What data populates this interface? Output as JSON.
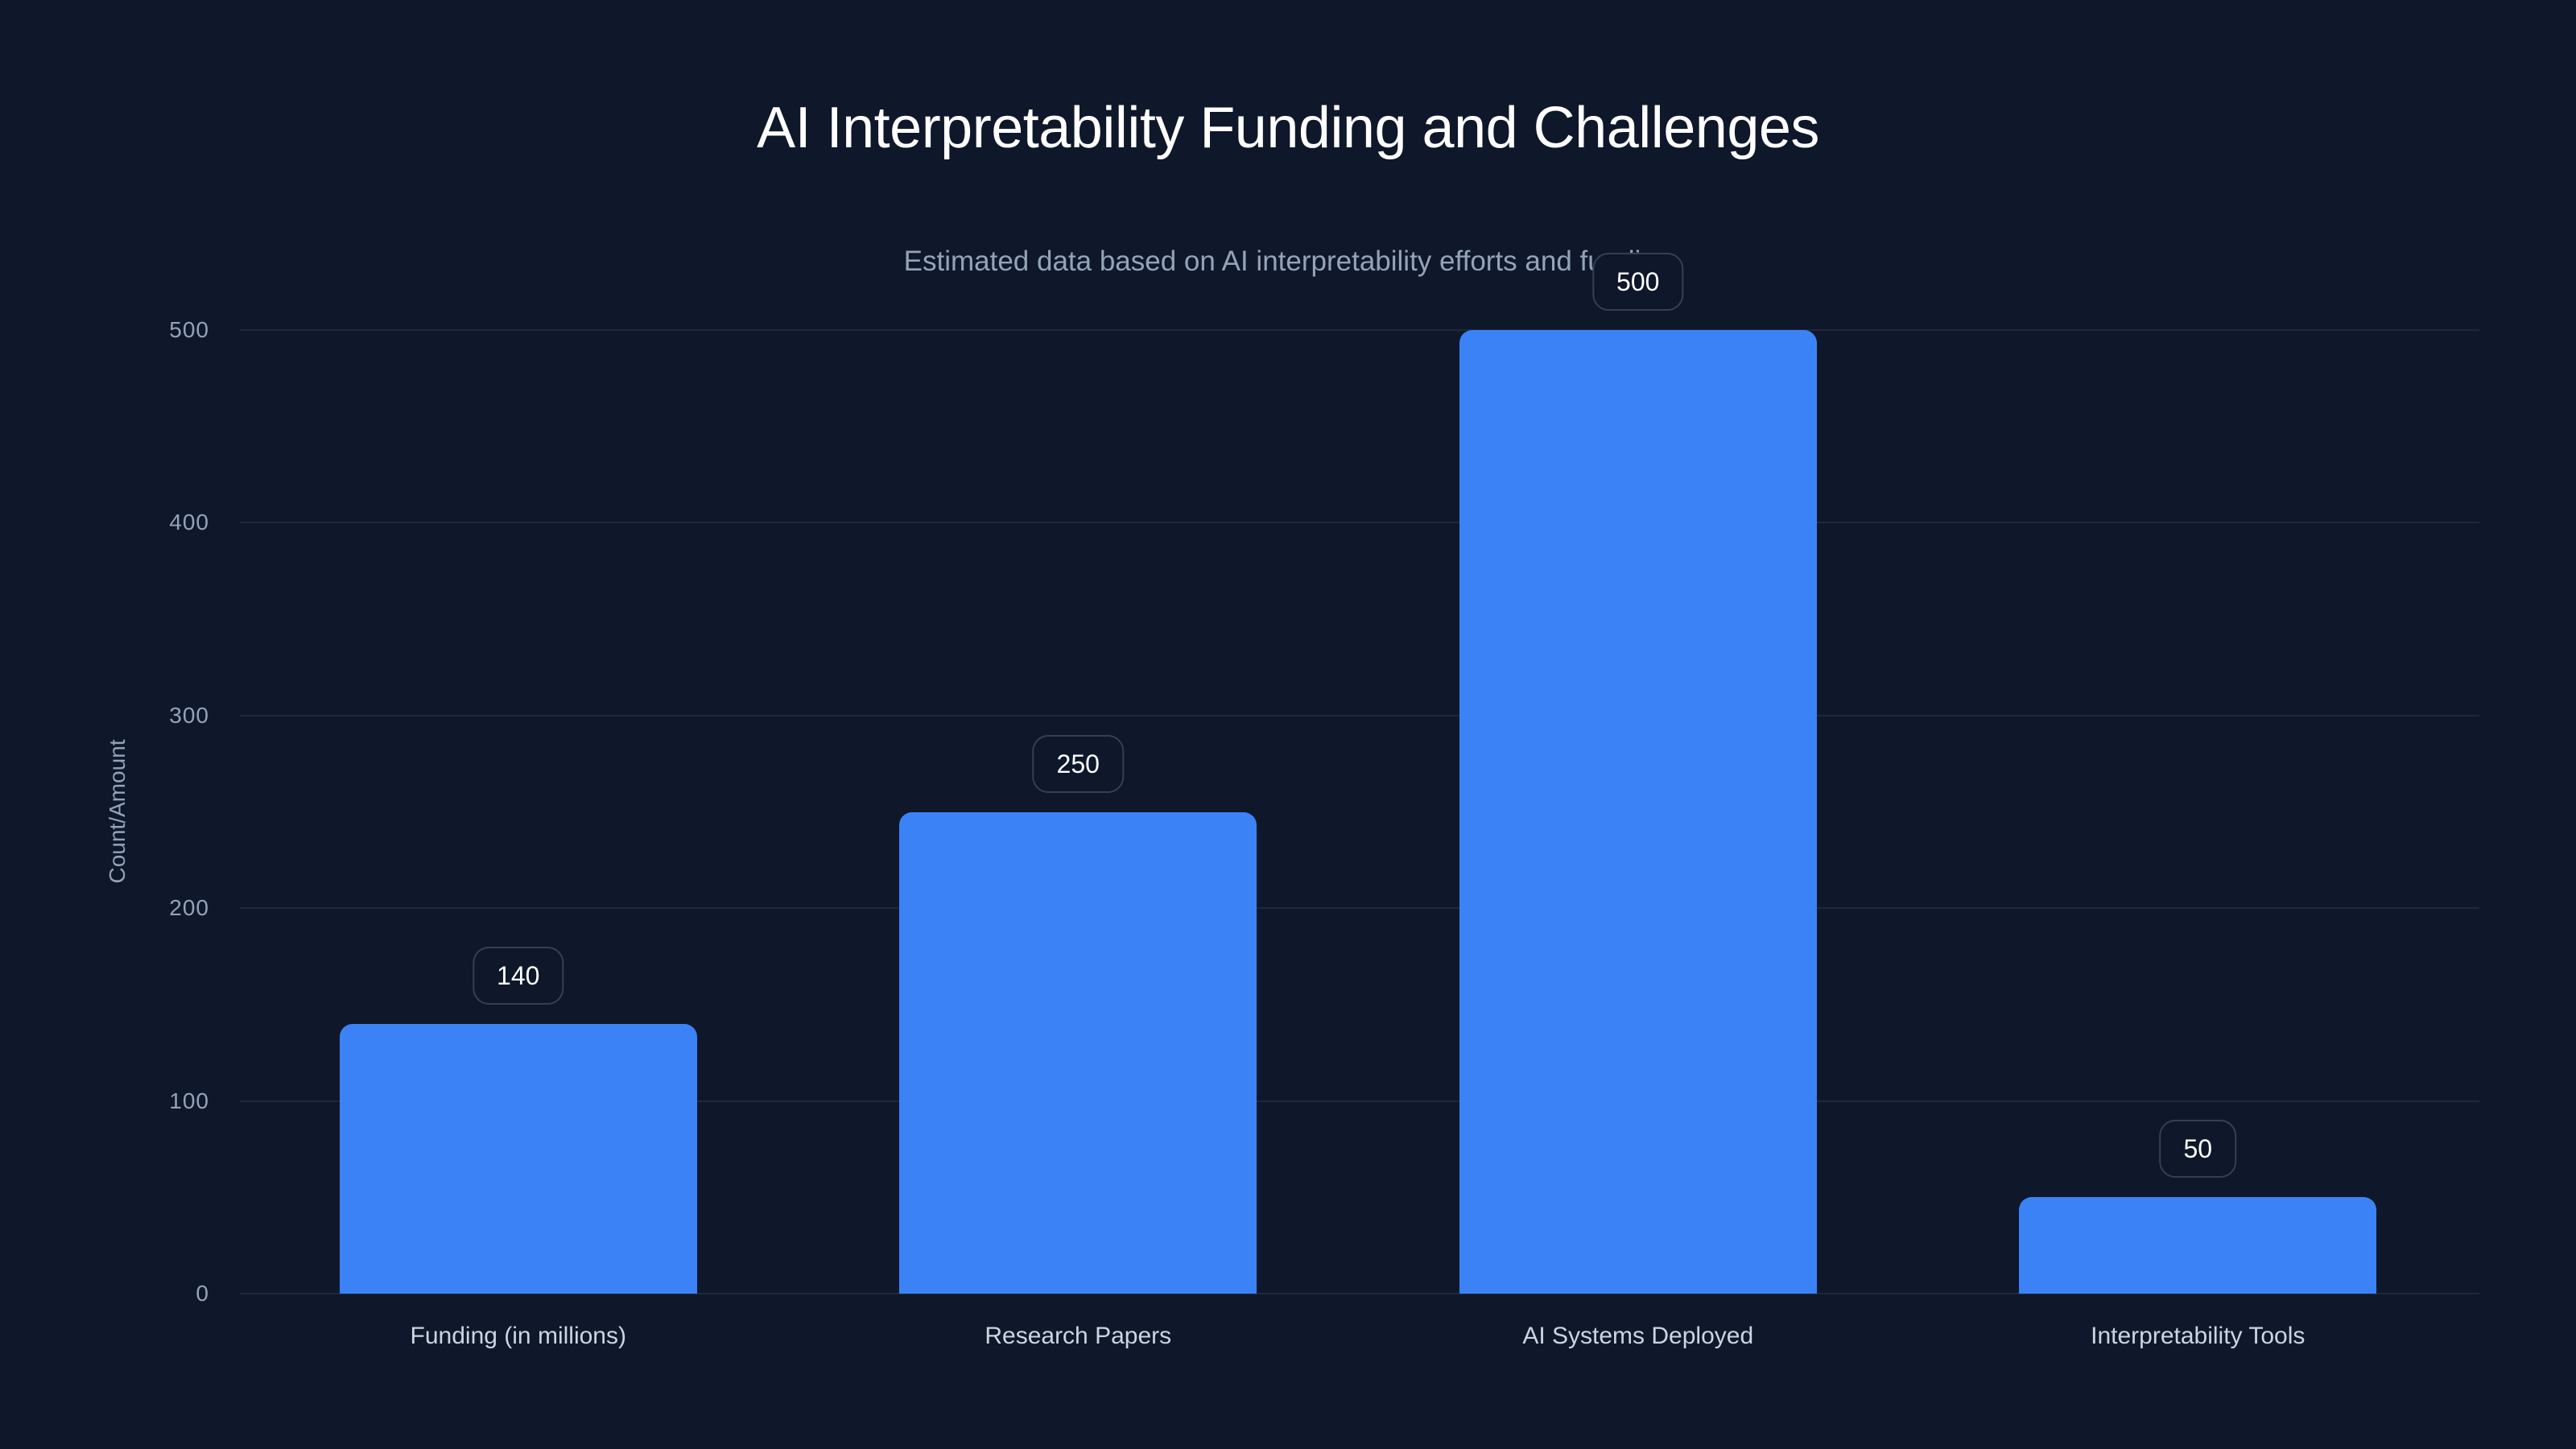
{
  "chart_data": {
    "type": "bar",
    "title": "AI Interpretability Funding and Challenges",
    "subtitle": "Estimated data based on AI interpretability efforts and funding",
    "xlabel": "",
    "ylabel": "Count/Amount",
    "categories": [
      "Funding (in millions)",
      "Research Papers",
      "AI Systems Deployed",
      "Interpretability Tools"
    ],
    "values": [
      140,
      250,
      500,
      50
    ],
    "value_labels": [
      "140",
      "250",
      "500",
      "50"
    ],
    "ylim": [
      0,
      500
    ],
    "yticks": [
      "0",
      "100",
      "200",
      "300",
      "400",
      "500"
    ],
    "grid": true,
    "legend": null,
    "colors": {
      "bar": "#3b82f6",
      "background": "#0f172a",
      "grid": "#1e293b"
    }
  }
}
